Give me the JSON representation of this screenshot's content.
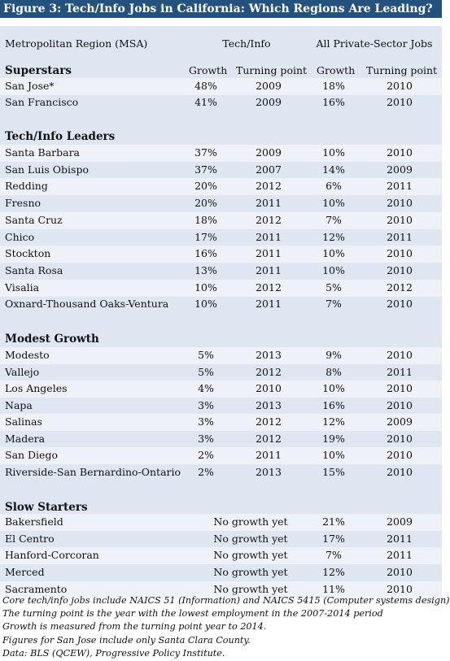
{
  "title": "Figure 3: Tech/Info Jobs in California: Which Regions Are Leading?",
  "header": {
    "region": "Metropolitan Region (MSA)",
    "tech": "Tech/Info",
    "private": "All Private-Sector Jobs"
  },
  "subheaders": {
    "growth": "Growth",
    "turning_point": "Turning point"
  },
  "sections": [
    {
      "title": "Superstars",
      "rows": [
        {
          "region": "San Jose*",
          "tech_growth": "48%",
          "tech_tp": "2009",
          "priv_growth": "18%",
          "priv_tp": "2010"
        },
        {
          "region": "San Francisco",
          "tech_growth": "41%",
          "tech_tp": "2009",
          "priv_growth": "16%",
          "priv_tp": "2010"
        }
      ]
    },
    {
      "title": "Tech/Info Leaders",
      "rows": [
        {
          "region": "Santa Barbara",
          "tech_growth": "37%",
          "tech_tp": "2009",
          "priv_growth": "10%",
          "priv_tp": "2010"
        },
        {
          "region": "San Luis Obispo",
          "tech_growth": "37%",
          "tech_tp": "2007",
          "priv_growth": "14%",
          "priv_tp": "2009"
        },
        {
          "region": "Redding",
          "tech_growth": "20%",
          "tech_tp": "2012",
          "priv_growth": "6%",
          "priv_tp": "2011"
        },
        {
          "region": "Fresno",
          "tech_growth": "20%",
          "tech_tp": "2011",
          "priv_growth": "10%",
          "priv_tp": "2010"
        },
        {
          "region": "Santa Cruz",
          "tech_growth": "18%",
          "tech_tp": "2012",
          "priv_growth": "7%",
          "priv_tp": "2010"
        },
        {
          "region": "Chico",
          "tech_growth": "17%",
          "tech_tp": "2011",
          "priv_growth": "12%",
          "priv_tp": "2011"
        },
        {
          "region": "Stockton",
          "tech_growth": "16%",
          "tech_tp": "2011",
          "priv_growth": "10%",
          "priv_tp": "2010"
        },
        {
          "region": "Santa Rosa",
          "tech_growth": "13%",
          "tech_tp": "2011",
          "priv_growth": "10%",
          "priv_tp": "2010"
        },
        {
          "region": "Visalia",
          "tech_growth": "10%",
          "tech_tp": "2012",
          "priv_growth": "5%",
          "priv_tp": "2012"
        },
        {
          "region": "Oxnard-Thousand Oaks-Ventura",
          "tech_growth": "10%",
          "tech_tp": "2011",
          "priv_growth": "7%",
          "priv_tp": "2010"
        }
      ]
    },
    {
      "title": "Modest Growth",
      "rows": [
        {
          "region": "Modesto",
          "tech_growth": "5%",
          "tech_tp": "2013",
          "priv_growth": "9%",
          "priv_tp": "2010"
        },
        {
          "region": "Vallejo",
          "tech_growth": "5%",
          "tech_tp": "2012",
          "priv_growth": "8%",
          "priv_tp": "2011"
        },
        {
          "region": "Los Angeles",
          "tech_growth": "4%",
          "tech_tp": "2010",
          "priv_growth": "10%",
          "priv_tp": "2010"
        },
        {
          "region": "Napa",
          "tech_growth": "3%",
          "tech_tp": "2013",
          "priv_growth": "16%",
          "priv_tp": "2010"
        },
        {
          "region": "Salinas",
          "tech_growth": "3%",
          "tech_tp": "2012",
          "priv_growth": "12%",
          "priv_tp": "2009"
        },
        {
          "region": "Madera",
          "tech_growth": "3%",
          "tech_tp": "2012",
          "priv_growth": "19%",
          "priv_tp": "2010"
        },
        {
          "region": "San Diego",
          "tech_growth": "2%",
          "tech_tp": "2011",
          "priv_growth": "10%",
          "priv_tp": "2010"
        },
        {
          "region": "Riverside-San Bernardino-Ontario",
          "tech_growth": "2%",
          "tech_tp": "2013",
          "priv_growth": "15%",
          "priv_tp": "2010"
        }
      ]
    },
    {
      "title": "Slow Starters",
      "rows": [
        {
          "region": "Bakersfield",
          "tech": "No growth yet",
          "priv_growth": "21%",
          "priv_tp": "2009"
        },
        {
          "region": "El Centro",
          "tech": "No growth yet",
          "priv_growth": "17%",
          "priv_tp": "2011"
        },
        {
          "region": "Hanford-Corcoran",
          "tech": "No growth yet",
          "priv_growth": "7%",
          "priv_tp": "2011"
        },
        {
          "region": "Merced",
          "tech": "No growth yet",
          "priv_growth": "12%",
          "priv_tp": "2010"
        },
        {
          "region": "Sacramento",
          "tech": "No growth yet",
          "priv_growth": "11%",
          "priv_tp": "2010"
        }
      ]
    }
  ],
  "notes": [
    "Core tech/info jobs include NAICS 51 (Information) and NAICS 5415 (Computer systems design)",
    "The turning point is the year with the lowest employment in the 2007-2014 period",
    "Growth is measured from the turning point year to 2014.",
    "Figures for San Jose include only Santa Clara County.",
    "Data: BLS (QCEW), Progressive Policy Institute."
  ]
}
